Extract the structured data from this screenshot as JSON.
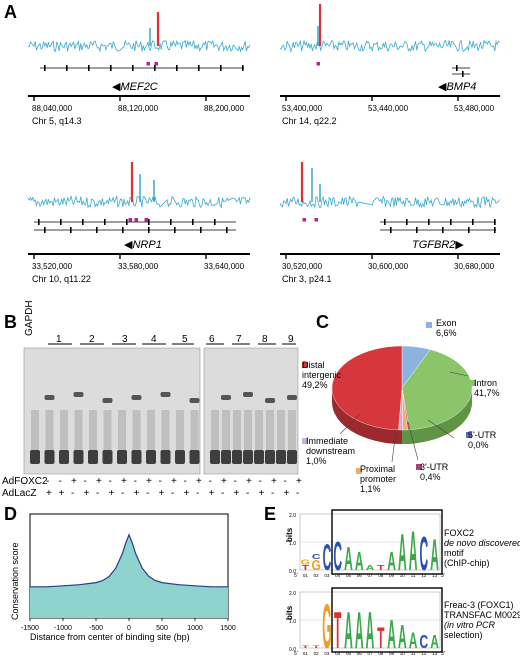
{
  "panels": {
    "A": {
      "letter": "A",
      "tracks": [
        {
          "gene": "MEF2C",
          "arrow": "◀",
          "ticks": [
            "88,040,000",
            "88,120,000",
            "88,200,000"
          ],
          "chr": "Chr 5, q14.3"
        },
        {
          "gene": "BMP4",
          "arrow": "◀",
          "ticks": [
            "53,400,000",
            "53,440,000",
            "53,480,000"
          ],
          "chr": "Chr 14, q22.2"
        },
        {
          "gene": "NRP1",
          "arrow": "◀",
          "ticks": [
            "33,520,000",
            "33,580,000",
            "33,640,000"
          ],
          "chr": "Chr 10, q11.22"
        },
        {
          "gene": "TGFBR2",
          "arrow": "▶",
          "ticks": [
            "30,520,000",
            "30,600,000",
            "30,680,000"
          ],
          "chr": "Chr 3, p24.1"
        }
      ]
    },
    "B": {
      "letter": "B",
      "gapdh": "GAPDH",
      "lanes_left": [
        "1",
        "2",
        "3",
        "4",
        "5"
      ],
      "lanes_right": [
        "6",
        "7",
        "8",
        "9"
      ],
      "row1_label": "AdFOXC2",
      "row2_label": "AdLacZ",
      "row1_signs": [
        "-",
        "-",
        "+",
        "-",
        "+",
        "-",
        "+",
        "-",
        "+",
        "-",
        "+",
        "-",
        "+",
        "-",
        "+",
        "-",
        "+",
        "-",
        "+",
        "-",
        "+"
      ],
      "row2_signs": [
        "+",
        "+",
        "-",
        "+",
        "-",
        "+",
        "-",
        "+",
        "-",
        "+",
        "-",
        "+",
        "-",
        "+",
        "-",
        "+",
        "-",
        "+",
        "-",
        "+",
        "-"
      ]
    },
    "C": {
      "letter": "C",
      "slices": [
        {
          "name": "Exon",
          "value": "6,6%"
        },
        {
          "name": "Intron",
          "value": "41,7%"
        },
        {
          "name": "5'-UTR",
          "value": "0,0%"
        },
        {
          "name": "3'-UTR",
          "value": "0,4%"
        },
        {
          "name": "Proximal promoter",
          "value": "1,1%"
        },
        {
          "name": "Immediate downstream",
          "value": "1,0%"
        },
        {
          "name": "Distal intergenic",
          "value": "49,2%"
        }
      ]
    },
    "D": {
      "letter": "D",
      "ylabel": "Conservation score",
      "xlabel": "Distance from center of binding site (bp)",
      "xticks": [
        "-1500",
        "-1000",
        "-500",
        "0",
        "500",
        "1000",
        "1500"
      ]
    },
    "E": {
      "letter": "E",
      "bits": "bits",
      "logo1_caption_1": "FOXC2",
      "logo1_caption_2": "de novo discovered",
      "logo1_caption_3": "motif",
      "logo1_caption_4": "(ChIP-chip)",
      "logo2_caption_1": "Freac-3 (FOXC1)",
      "logo2_caption_2": "TRANSFAC M00291",
      "logo2_caption_3": "(in vitro PCR",
      "logo2_caption_4": "selection)",
      "y_ticks": [
        "2.0",
        "1.0",
        "0.0"
      ],
      "positions": [
        "01",
        "02",
        "03",
        "04",
        "05",
        "06",
        "07",
        "08",
        "09",
        "10",
        "11",
        "12",
        "13"
      ],
      "five": "5'",
      "three": "3'"
    }
  },
  "chart_data": [
    {
      "type": "pie",
      "title": "",
      "categories": [
        "Exon",
        "Intron",
        "5'-UTR",
        "3'-UTR",
        "Proximal promoter",
        "Immediate downstream",
        "Distal intergenic"
      ],
      "values": [
        6.6,
        41.7,
        0.0,
        0.4,
        1.1,
        1.0,
        49.2
      ],
      "colors": [
        "#8cb3df",
        "#8cc46a",
        "#5a6fc0",
        "#a0447a",
        "#f0b060",
        "#c8b0d8",
        "#d6373c"
      ]
    },
    {
      "type": "area",
      "title": "",
      "xlabel": "Distance from center of binding site (bp)",
      "ylabel": "Conservation score",
      "xlim": [
        -1500,
        1500
      ],
      "x": [
        -1500,
        -1250,
        -1000,
        -750,
        -500,
        -400,
        -300,
        -200,
        -100,
        -50,
        0,
        50,
        100,
        200,
        300,
        400,
        500,
        750,
        1000,
        1250,
        1500
      ],
      "series": [
        {
          "values": [
            0.3,
            0.3,
            0.31,
            0.32,
            0.34,
            0.36,
            0.4,
            0.48,
            0.62,
            0.72,
            0.8,
            0.72,
            0.62,
            0.48,
            0.4,
            0.36,
            0.34,
            0.32,
            0.31,
            0.3,
            0.3
          ]
        }
      ],
      "ylim": [
        0,
        1
      ]
    }
  ]
}
